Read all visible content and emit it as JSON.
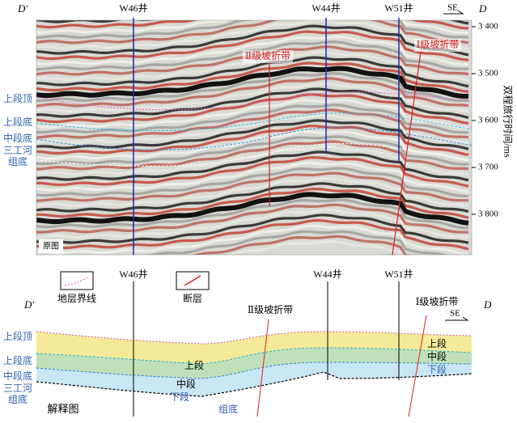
{
  "top_panel": {
    "left_label": "D'",
    "right_label": "D",
    "direction": "SE",
    "wells": [
      "W46井",
      "W44井",
      "W51井"
    ],
    "horizon_labels": [
      "上段顶",
      "上段底",
      "中段底",
      "三工河",
      "组底"
    ],
    "slope_breaks": [
      "Ⅱ级坡折带",
      "Ⅰ级坡折带"
    ],
    "axis_title": "双程旅行时间/ms",
    "yticks": [
      "3 400",
      "3 500",
      "3 600",
      "3 700",
      "3 800"
    ],
    "caption": "原图"
  },
  "bottom_panel": {
    "left_label": "D'",
    "right_label": "D",
    "direction": "SE",
    "wells": [
      "W46井",
      "W44井",
      "W51井"
    ],
    "legend": [
      "地层界线",
      "断层"
    ],
    "horizon_labels": [
      "上段顶",
      "上段底",
      "中段底",
      "三工河",
      "组底"
    ],
    "slope_breaks": [
      "Ⅱ级坡折带",
      "Ⅰ级坡折带"
    ],
    "unit_labels_left": [
      "上段",
      "中段",
      "下段",
      "组底"
    ],
    "unit_labels_right": [
      "上段",
      "中段",
      "下段"
    ],
    "caption": "解释图"
  }
}
